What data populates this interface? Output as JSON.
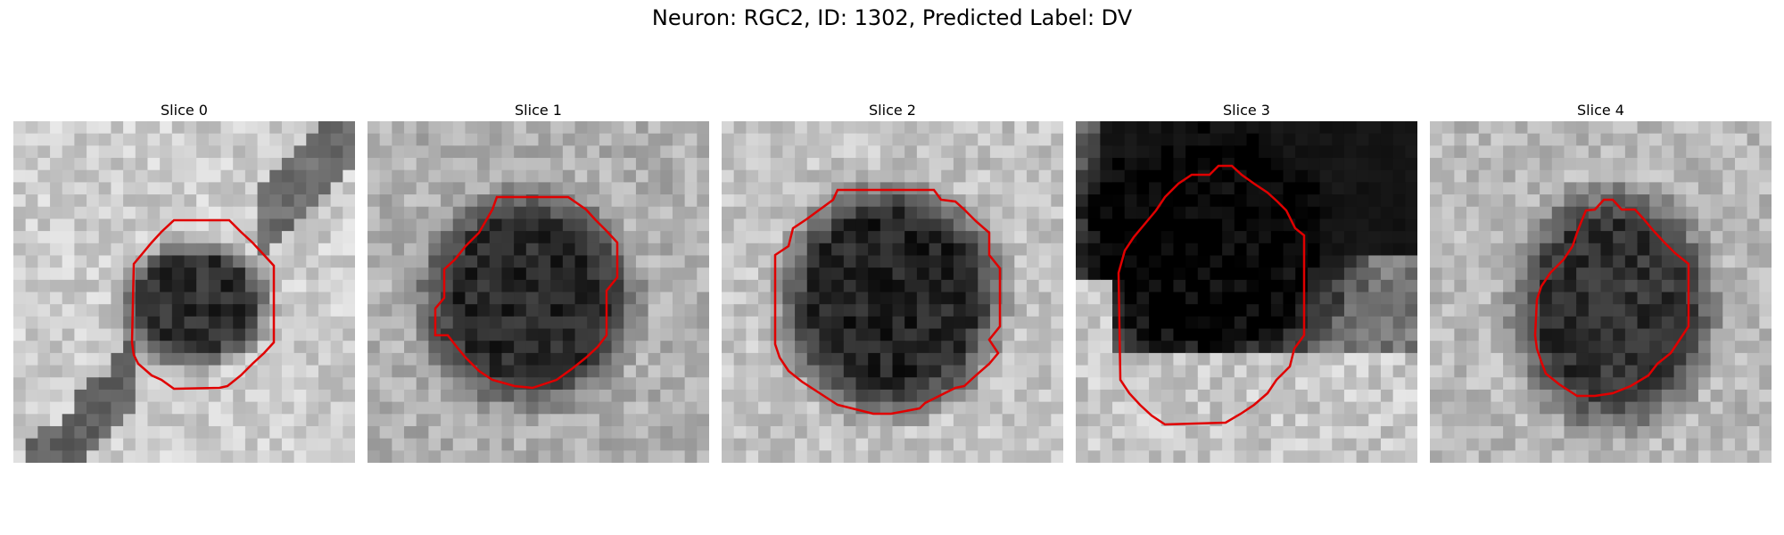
{
  "figure": {
    "title": "Neuron: RGC2, ID: 1302, Predicted Label: DV",
    "contour_color": "#e00000",
    "colormap": "grayscale",
    "panels": [
      {
        "title": "Slice 0",
        "contrast": "mid"
      },
      {
        "title": "Slice 1",
        "contrast": "mid"
      },
      {
        "title": "Slice 2",
        "contrast": "mid"
      },
      {
        "title": "Slice 3",
        "contrast": "high"
      },
      {
        "title": "Slice 4",
        "contrast": "mid"
      }
    ]
  }
}
